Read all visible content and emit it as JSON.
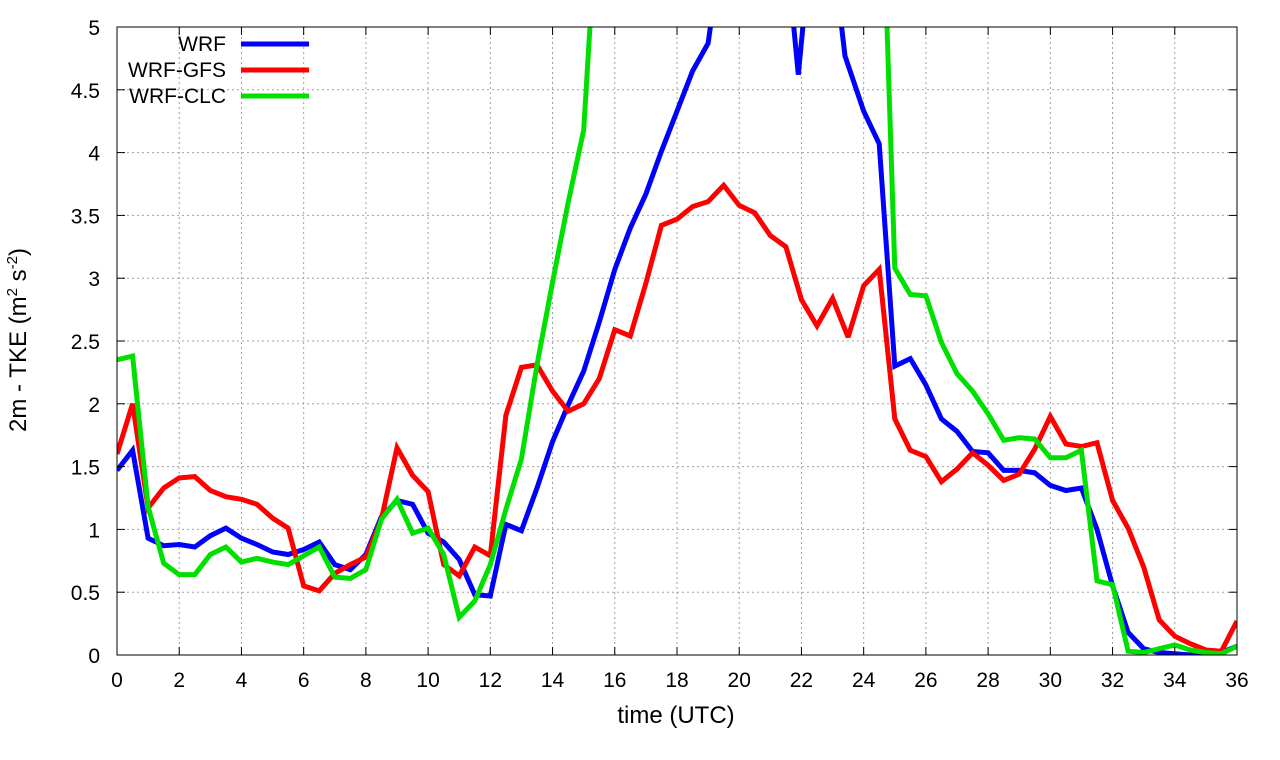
{
  "chart_data": {
    "type": "line",
    "title": "",
    "xlabel": "time (UTC)",
    "ylabel_parts": [
      "2m - TKE (m",
      "2",
      " s",
      "-2",
      ")"
    ],
    "xlim": [
      0,
      36
    ],
    "ylim": [
      0,
      5
    ],
    "xticks": [
      0,
      2,
      4,
      6,
      8,
      10,
      12,
      14,
      16,
      18,
      20,
      22,
      24,
      26,
      28,
      30,
      32,
      34,
      36
    ],
    "yticks": [
      0,
      0.5,
      1,
      1.5,
      2,
      2.5,
      3,
      3.5,
      4,
      4.5,
      5
    ],
    "ytick_labels": [
      "0",
      "0.5",
      "1",
      "1.5",
      "2",
      "2.5",
      "3",
      "3.5",
      "4",
      "4.5",
      "5"
    ],
    "grid": true,
    "legend_position": "top-left",
    "series": [
      {
        "name": "WRF",
        "color": "#0000ff",
        "points": [
          [
            0,
            1.47
          ],
          [
            0.5,
            1.63
          ],
          [
            1,
            0.93
          ],
          [
            1.5,
            0.87
          ],
          [
            2,
            0.88
          ],
          [
            2.5,
            0.86
          ],
          [
            3,
            0.95
          ],
          [
            3.5,
            1.01
          ],
          [
            4,
            0.93
          ],
          [
            4.5,
            0.88
          ],
          [
            5,
            0.82
          ],
          [
            5.5,
            0.8
          ],
          [
            6,
            0.84
          ],
          [
            6.5,
            0.9
          ],
          [
            7,
            0.72
          ],
          [
            7.5,
            0.68
          ],
          [
            8,
            0.8
          ],
          [
            8.5,
            1.1
          ],
          [
            9,
            1.23
          ],
          [
            9.5,
            1.2
          ],
          [
            10,
            0.97
          ],
          [
            10.5,
            0.9
          ],
          [
            11,
            0.76
          ],
          [
            11.5,
            0.48
          ],
          [
            12,
            0.47
          ],
          [
            12.5,
            1.04
          ],
          [
            13,
            0.99
          ],
          [
            13.5,
            1.33
          ],
          [
            14,
            1.7
          ],
          [
            14.5,
            1.99
          ],
          [
            15,
            2.26
          ],
          [
            15.5,
            2.65
          ],
          [
            16,
            3.07
          ],
          [
            16.5,
            3.4
          ],
          [
            17,
            3.67
          ],
          [
            17.5,
            4.01
          ],
          [
            18,
            4.33
          ],
          [
            18.5,
            4.65
          ],
          [
            19,
            4.87
          ],
          [
            19.3,
            5.4
          ],
          [
            21.6,
            5.4
          ],
          [
            21.9,
            4.62
          ],
          [
            22.2,
            5.4
          ],
          [
            23.1,
            5.4
          ],
          [
            23.4,
            4.77
          ],
          [
            24,
            4.33
          ],
          [
            24.5,
            4.07
          ],
          [
            25,
            2.3
          ],
          [
            25.5,
            2.36
          ],
          [
            26,
            2.15
          ],
          [
            26.5,
            1.88
          ],
          [
            27,
            1.78
          ],
          [
            27.5,
            1.62
          ],
          [
            28,
            1.61
          ],
          [
            28.5,
            1.47
          ],
          [
            29,
            1.47
          ],
          [
            29.5,
            1.45
          ],
          [
            30,
            1.35
          ],
          [
            30.5,
            1.31
          ],
          [
            31,
            1.33
          ],
          [
            31.5,
            1.0
          ],
          [
            32,
            0.55
          ],
          [
            32.5,
            0.18
          ],
          [
            33,
            0.05
          ],
          [
            33.5,
            0.02
          ],
          [
            34,
            0.01
          ],
          [
            34.5,
            0.0
          ],
          [
            35,
            0.0
          ],
          [
            35.5,
            0.02
          ],
          [
            36,
            0.07
          ]
        ]
      },
      {
        "name": "WRF-GFS",
        "color": "#ff0000",
        "points": [
          [
            0,
            1.6
          ],
          [
            0.5,
            2.0
          ],
          [
            1,
            1.17
          ],
          [
            1.5,
            1.33
          ],
          [
            2,
            1.41
          ],
          [
            2.5,
            1.42
          ],
          [
            3,
            1.31
          ],
          [
            3.5,
            1.26
          ],
          [
            4,
            1.24
          ],
          [
            4.5,
            1.2
          ],
          [
            5,
            1.09
          ],
          [
            5.5,
            1.01
          ],
          [
            6,
            0.55
          ],
          [
            6.5,
            0.51
          ],
          [
            7,
            0.65
          ],
          [
            7.5,
            0.72
          ],
          [
            8,
            0.78
          ],
          [
            8.5,
            1.08
          ],
          [
            9,
            1.65
          ],
          [
            9.5,
            1.43
          ],
          [
            10,
            1.3
          ],
          [
            10.5,
            0.72
          ],
          [
            11,
            0.63
          ],
          [
            11.5,
            0.86
          ],
          [
            12,
            0.79
          ],
          [
            12.5,
            1.91
          ],
          [
            13,
            2.29
          ],
          [
            13.5,
            2.31
          ],
          [
            14,
            2.1
          ],
          [
            14.5,
            1.94
          ],
          [
            15,
            2.0
          ],
          [
            15.5,
            2.2
          ],
          [
            16,
            2.59
          ],
          [
            16.5,
            2.54
          ],
          [
            17,
            2.96
          ],
          [
            17.5,
            3.42
          ],
          [
            18,
            3.47
          ],
          [
            18.5,
            3.57
          ],
          [
            19,
            3.61
          ],
          [
            19.5,
            3.74
          ],
          [
            20,
            3.58
          ],
          [
            20.5,
            3.52
          ],
          [
            21,
            3.34
          ],
          [
            21.5,
            3.25
          ],
          [
            22,
            2.83
          ],
          [
            22.5,
            2.62
          ],
          [
            23,
            2.84
          ],
          [
            23.5,
            2.53
          ],
          [
            24,
            2.94
          ],
          [
            24.5,
            3.07
          ],
          [
            25,
            1.88
          ],
          [
            25.5,
            1.63
          ],
          [
            26,
            1.58
          ],
          [
            26.5,
            1.38
          ],
          [
            27,
            1.48
          ],
          [
            27.5,
            1.61
          ],
          [
            28,
            1.51
          ],
          [
            28.5,
            1.39
          ],
          [
            29,
            1.44
          ],
          [
            29.5,
            1.64
          ],
          [
            30,
            1.9
          ],
          [
            30.5,
            1.68
          ],
          [
            31,
            1.66
          ],
          [
            31.5,
            1.69
          ],
          [
            32,
            1.23
          ],
          [
            32.5,
            1.01
          ],
          [
            33,
            0.7
          ],
          [
            33.5,
            0.28
          ],
          [
            34,
            0.15
          ],
          [
            34.5,
            0.09
          ],
          [
            35,
            0.04
          ],
          [
            35.5,
            0.03
          ],
          [
            36,
            0.27
          ]
        ]
      },
      {
        "name": "WRF-CLC",
        "color": "#00e000",
        "points": [
          [
            0,
            2.35
          ],
          [
            0.5,
            2.38
          ],
          [
            1,
            1.18
          ],
          [
            1.5,
            0.73
          ],
          [
            2,
            0.64
          ],
          [
            2.5,
            0.64
          ],
          [
            3,
            0.8
          ],
          [
            3.5,
            0.86
          ],
          [
            4,
            0.74
          ],
          [
            4.5,
            0.77
          ],
          [
            5,
            0.74
          ],
          [
            5.5,
            0.72
          ],
          [
            6,
            0.79
          ],
          [
            6.5,
            0.86
          ],
          [
            7,
            0.62
          ],
          [
            7.5,
            0.61
          ],
          [
            8,
            0.68
          ],
          [
            8.5,
            1.08
          ],
          [
            9,
            1.24
          ],
          [
            9.5,
            0.97
          ],
          [
            10,
            1.01
          ],
          [
            10.5,
            0.8
          ],
          [
            11,
            0.3
          ],
          [
            11.5,
            0.43
          ],
          [
            12,
            0.72
          ],
          [
            12.5,
            1.16
          ],
          [
            13,
            1.56
          ],
          [
            13.5,
            2.31
          ],
          [
            14,
            2.97
          ],
          [
            14.5,
            3.6
          ],
          [
            15,
            4.18
          ],
          [
            15.3,
            5.4
          ],
          [
            24.7,
            5.4
          ],
          [
            25,
            3.08
          ],
          [
            25.5,
            2.87
          ],
          [
            26,
            2.86
          ],
          [
            26.5,
            2.49
          ],
          [
            27,
            2.24
          ],
          [
            27.5,
            2.1
          ],
          [
            28,
            1.92
          ],
          [
            28.5,
            1.71
          ],
          [
            29,
            1.73
          ],
          [
            29.5,
            1.72
          ],
          [
            30,
            1.57
          ],
          [
            30.5,
            1.57
          ],
          [
            31,
            1.63
          ],
          [
            31.5,
            0.59
          ],
          [
            32,
            0.56
          ],
          [
            32.5,
            0.03
          ],
          [
            33,
            0.02
          ],
          [
            33.5,
            0.05
          ],
          [
            34,
            0.08
          ],
          [
            34.5,
            0.04
          ],
          [
            35,
            0.02
          ],
          [
            35.5,
            0.01
          ],
          [
            36,
            0.07
          ]
        ]
      }
    ]
  }
}
